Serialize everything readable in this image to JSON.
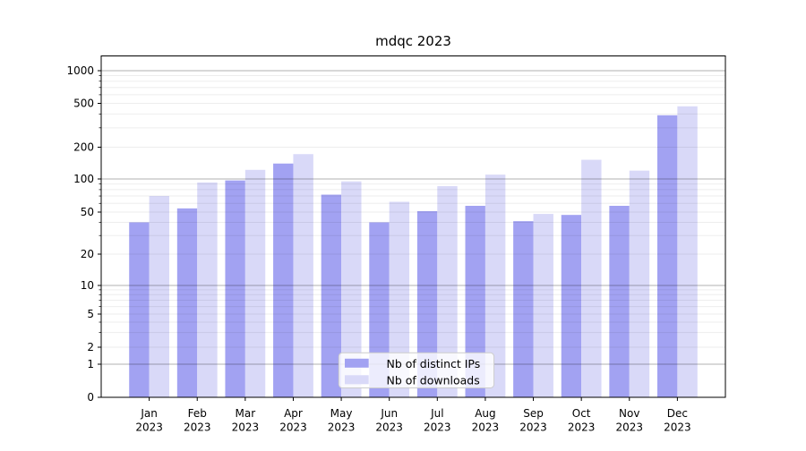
{
  "title": "mdqc 2023",
  "chart_data": {
    "type": "bar",
    "title": "mdqc 2023",
    "categories": [
      "Jan",
      "Feb",
      "Mar",
      "Apr",
      "May",
      "Jun",
      "Jul",
      "Aug",
      "Sep",
      "Oct",
      "Nov",
      "Dec"
    ],
    "year_label": "2023",
    "series": [
      {
        "name": "Nb of distinct IPs",
        "color": "#a2a2f2",
        "values": [
          40,
          54,
          97,
          140,
          72,
          40,
          51,
          57,
          41,
          47,
          57,
          390
        ]
      },
      {
        "name": "Nb of downloads",
        "color": "#d9d9f8",
        "values": [
          70,
          93,
          122,
          172,
          95,
          62,
          86,
          110,
          48,
          152,
          120,
          470
        ]
      }
    ],
    "yscale": "symlog",
    "y_ticks": [
      0,
      1,
      2,
      5,
      10,
      20,
      50,
      100,
      200,
      500,
      1000
    ],
    "ylim": [
      0,
      1370
    ],
    "xlabel": "",
    "ylabel": "",
    "grid": "both",
    "legend_position": "lower-center"
  },
  "colors": {
    "background": "#ffffff",
    "axis": "#000000",
    "grid_major": "#b0b0b0",
    "grid_minor": "#ebebeb",
    "legend_border": "#cccccc",
    "legend_background": "rgba(255,255,255,0.8)"
  }
}
